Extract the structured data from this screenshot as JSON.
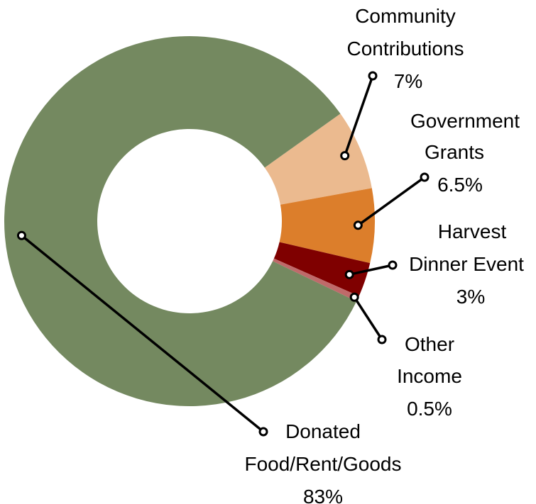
{
  "chart_data": {
    "type": "pie",
    "donut": true,
    "title": "",
    "slices": [
      {
        "label_lines": [
          "Community",
          "Contributions"
        ],
        "value_label": "7%",
        "value": 7,
        "color": "#ebba8f"
      },
      {
        "label_lines": [
          "Government",
          "Grants"
        ],
        "value_label": "6.5%",
        "value": 6.5,
        "color": "#dc7e2b"
      },
      {
        "label_lines": [
          "Harvest",
          "Dinner Event"
        ],
        "value_label": "3%",
        "value": 3,
        "color": "#7f0000"
      },
      {
        "label_lines": [
          "Other",
          "Income"
        ],
        "value_label": "0.5%",
        "value": 0.5,
        "color": "#bf6a6a"
      },
      {
        "label_lines": [
          "Donated",
          "Food/Rent/Goods"
        ],
        "value_label": "83%",
        "value": 83,
        "color": "#748960"
      }
    ]
  }
}
